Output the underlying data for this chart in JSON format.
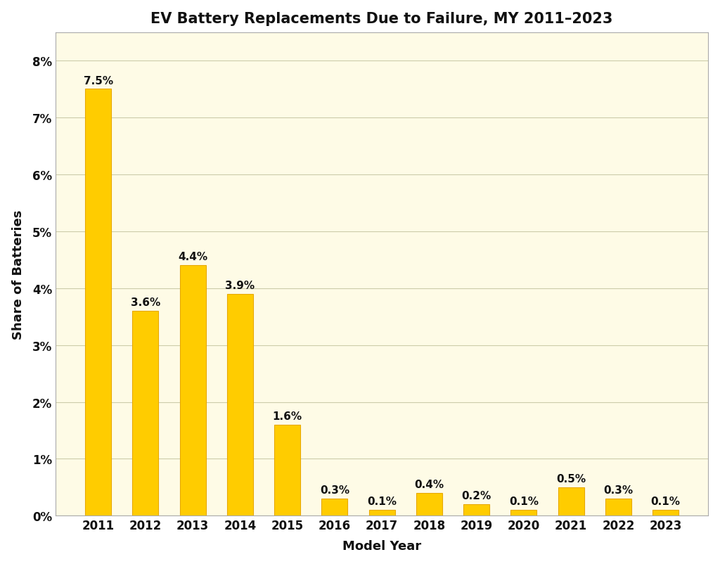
{
  "title": "EV Battery Replacements Due to Failure, MY 2011–2023",
  "xlabel": "Model Year",
  "ylabel": "Share of Batteries",
  "categories": [
    "2011",
    "2012",
    "2013",
    "2014",
    "2015",
    "2016",
    "2017",
    "2018",
    "2019",
    "2020",
    "2021",
    "2022",
    "2023"
  ],
  "values": [
    7.5,
    3.6,
    4.4,
    3.9,
    1.6,
    0.3,
    0.1,
    0.4,
    0.2,
    0.1,
    0.5,
    0.3,
    0.1
  ],
  "bar_color": "#FFCC00",
  "bar_edgecolor": "#E8A800",
  "figure_background_color": "#FFFFFF",
  "plot_background_color": "#FEFBE6",
  "grid_color": "#CCCCAA",
  "title_fontsize": 15,
  "axis_label_fontsize": 13,
  "tick_fontsize": 12,
  "annotation_fontsize": 11,
  "ylim": [
    0,
    8.5
  ],
  "yticks": [
    0,
    1,
    2,
    3,
    4,
    5,
    6,
    7,
    8
  ]
}
